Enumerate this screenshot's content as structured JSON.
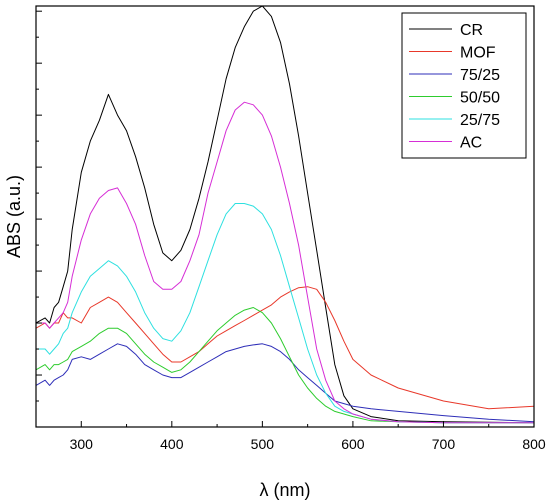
{
  "chart_data": {
    "type": "line",
    "xlabel": "λ (nm)",
    "ylabel": "ABS (a.u.)",
    "xlim": [
      250,
      800
    ],
    "ylim": [
      0,
      8.1
    ],
    "x_ticks": [
      300,
      400,
      500,
      600,
      700,
      800
    ],
    "x_tick_labels": [
      "300",
      "400",
      "500",
      "600",
      "700",
      "800"
    ],
    "y_ticks": [
      1,
      2,
      3,
      4,
      5,
      6,
      7,
      8
    ],
    "grid": false,
    "legend_position": "top-right",
    "series": [
      {
        "name": "CR",
        "color": "#000000",
        "x": [
          250,
          260,
          265,
          270,
          275,
          280,
          285,
          290,
          300,
          310,
          320,
          330,
          340,
          350,
          360,
          370,
          380,
          390,
          400,
          410,
          420,
          430,
          440,
          450,
          460,
          470,
          480,
          490,
          500,
          510,
          520,
          530,
          540,
          550,
          560,
          570,
          580,
          590,
          600,
          620,
          650,
          700,
          750,
          800
        ],
        "y": [
          2.0,
          2.1,
          2.0,
          2.3,
          2.4,
          2.7,
          3.0,
          3.8,
          4.9,
          5.5,
          5.9,
          6.4,
          6.0,
          5.7,
          5.2,
          4.6,
          3.9,
          3.35,
          3.2,
          3.4,
          3.8,
          4.4,
          5.1,
          5.9,
          6.7,
          7.3,
          7.7,
          8.0,
          8.1,
          7.9,
          7.4,
          6.6,
          5.6,
          4.5,
          3.4,
          2.3,
          1.2,
          0.6,
          0.35,
          0.2,
          0.12,
          0.1,
          0.09,
          0.08
        ]
      },
      {
        "name": "MOF",
        "color": "#e8382a",
        "x": [
          250,
          260,
          265,
          270,
          275,
          280,
          285,
          290,
          300,
          310,
          320,
          330,
          340,
          350,
          360,
          370,
          380,
          390,
          400,
          410,
          420,
          430,
          440,
          450,
          460,
          470,
          480,
          490,
          500,
          510,
          520,
          530,
          540,
          550,
          560,
          570,
          580,
          590,
          600,
          620,
          650,
          700,
          750,
          800
        ],
        "y": [
          1.9,
          2.0,
          1.9,
          2.0,
          2.0,
          2.2,
          2.1,
          2.1,
          2.0,
          2.3,
          2.4,
          2.5,
          2.4,
          2.2,
          2.0,
          1.8,
          1.6,
          1.4,
          1.25,
          1.25,
          1.35,
          1.45,
          1.6,
          1.75,
          1.85,
          1.95,
          2.05,
          2.15,
          2.25,
          2.35,
          2.5,
          2.6,
          2.68,
          2.7,
          2.65,
          2.4,
          2.05,
          1.65,
          1.3,
          1.0,
          0.75,
          0.5,
          0.35,
          0.4
        ]
      },
      {
        "name": "75/25",
        "color": "#2e2eb8",
        "x": [
          250,
          260,
          265,
          270,
          275,
          280,
          285,
          290,
          300,
          310,
          320,
          330,
          340,
          350,
          360,
          370,
          380,
          390,
          400,
          410,
          420,
          430,
          440,
          450,
          460,
          470,
          480,
          490,
          500,
          510,
          520,
          530,
          540,
          550,
          560,
          570,
          580,
          590,
          600,
          620,
          650,
          700,
          750,
          800
        ],
        "y": [
          0.8,
          0.9,
          0.8,
          0.9,
          0.95,
          1.0,
          1.1,
          1.3,
          1.35,
          1.3,
          1.4,
          1.5,
          1.6,
          1.55,
          1.4,
          1.2,
          1.1,
          1.0,
          0.95,
          0.95,
          1.05,
          1.15,
          1.25,
          1.35,
          1.45,
          1.5,
          1.55,
          1.58,
          1.6,
          1.55,
          1.45,
          1.3,
          1.1,
          0.95,
          0.8,
          0.65,
          0.5,
          0.45,
          0.4,
          0.35,
          0.3,
          0.22,
          0.15,
          0.1
        ]
      },
      {
        "name": "50/50",
        "color": "#2ecc2e",
        "x": [
          250,
          260,
          265,
          270,
          275,
          280,
          285,
          290,
          300,
          310,
          320,
          330,
          340,
          350,
          360,
          370,
          380,
          390,
          400,
          410,
          420,
          430,
          440,
          450,
          460,
          470,
          480,
          490,
          500,
          510,
          520,
          530,
          540,
          550,
          560,
          570,
          580,
          590,
          600,
          620,
          650,
          700,
          750,
          800
        ],
        "y": [
          1.1,
          1.2,
          1.1,
          1.2,
          1.2,
          1.25,
          1.3,
          1.45,
          1.55,
          1.65,
          1.8,
          1.9,
          1.9,
          1.8,
          1.6,
          1.4,
          1.25,
          1.15,
          1.05,
          1.1,
          1.25,
          1.45,
          1.65,
          1.85,
          2.0,
          2.15,
          2.25,
          2.3,
          2.2,
          2.0,
          1.7,
          1.35,
          1.0,
          0.75,
          0.55,
          0.4,
          0.3,
          0.25,
          0.2,
          0.12,
          0.1,
          0.08,
          0.08,
          0.08
        ]
      },
      {
        "name": "25/75",
        "color": "#2ee0e0",
        "x": [
          250,
          260,
          265,
          270,
          275,
          280,
          285,
          290,
          300,
          310,
          320,
          330,
          340,
          350,
          360,
          370,
          380,
          390,
          400,
          410,
          420,
          430,
          440,
          450,
          460,
          470,
          480,
          490,
          500,
          510,
          520,
          530,
          540,
          550,
          560,
          570,
          580,
          590,
          600,
          620,
          650,
          700,
          750,
          800
        ],
        "y": [
          1.5,
          1.5,
          1.4,
          1.5,
          1.6,
          1.8,
          1.9,
          2.2,
          2.6,
          2.9,
          3.05,
          3.2,
          3.1,
          2.9,
          2.6,
          2.2,
          1.9,
          1.7,
          1.65,
          1.85,
          2.2,
          2.7,
          3.2,
          3.7,
          4.1,
          4.3,
          4.3,
          4.25,
          4.1,
          3.8,
          3.3,
          2.7,
          2.1,
          1.5,
          1.0,
          0.65,
          0.4,
          0.3,
          0.25,
          0.15,
          0.1,
          0.08,
          0.08,
          0.08
        ]
      },
      {
        "name": "AC",
        "color": "#d62ed6",
        "x": [
          250,
          260,
          265,
          270,
          275,
          280,
          285,
          290,
          300,
          310,
          320,
          330,
          340,
          350,
          360,
          370,
          380,
          390,
          400,
          410,
          420,
          430,
          440,
          450,
          460,
          470,
          480,
          490,
          500,
          510,
          520,
          530,
          540,
          550,
          560,
          570,
          580,
          590,
          600,
          620,
          650,
          700,
          750,
          800
        ],
        "y": [
          2.0,
          2.0,
          1.9,
          2.0,
          2.1,
          2.2,
          2.4,
          2.9,
          3.6,
          4.1,
          4.4,
          4.55,
          4.6,
          4.3,
          3.9,
          3.3,
          2.8,
          2.65,
          2.65,
          2.8,
          3.2,
          3.7,
          4.5,
          5.1,
          5.7,
          6.1,
          6.25,
          6.2,
          6.0,
          5.6,
          5.0,
          4.3,
          3.5,
          2.5,
          1.5,
          0.9,
          0.5,
          0.35,
          0.25,
          0.15,
          0.1,
          0.08,
          0.08,
          0.08
        ]
      }
    ]
  }
}
